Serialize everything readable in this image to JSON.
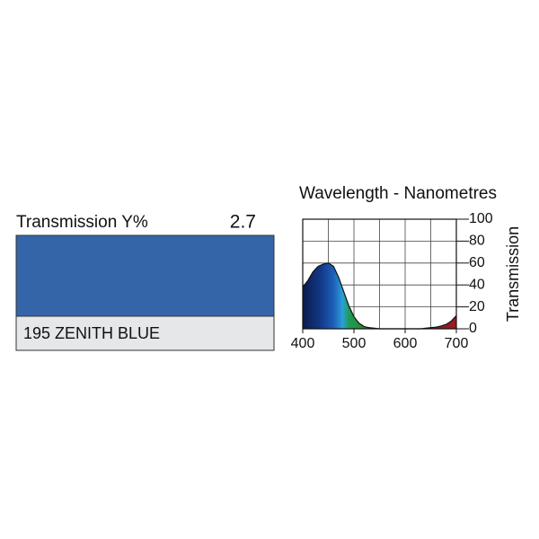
{
  "swatch": {
    "label": "Transmission Y%",
    "value": 2.7,
    "name": "195 ZENITH BLUE",
    "color": "#3465a9"
  },
  "chart_data": {
    "type": "area",
    "title": "Wavelength - Nanometres",
    "ylabel": "Transmission",
    "x": [
      400,
      410,
      420,
      430,
      440,
      450,
      460,
      470,
      480,
      490,
      500,
      510,
      520,
      530,
      540,
      550,
      560,
      570,
      580,
      590,
      600,
      610,
      620,
      630,
      640,
      650,
      660,
      670,
      680,
      690,
      700
    ],
    "values": [
      38,
      44,
      52,
      57,
      59,
      60,
      57,
      47,
      34,
      21,
      11,
      5,
      2,
      1,
      0.5,
      0,
      0,
      0,
      0,
      0,
      0,
      0,
      0,
      0,
      0.5,
      1,
      1.5,
      2.5,
      4,
      7,
      12
    ],
    "xlim": [
      400,
      700
    ],
    "ylim": [
      0,
      100
    ],
    "xticks": [
      400,
      500,
      600,
      700
    ],
    "yticks": [
      0,
      20,
      40,
      60,
      80,
      100
    ],
    "xgrid": [
      400,
      450,
      500,
      550,
      600,
      650,
      700
    ],
    "grid": true
  }
}
